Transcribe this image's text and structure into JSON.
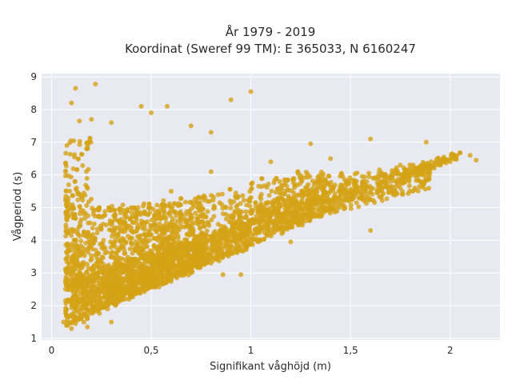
{
  "chart_data": {
    "type": "scatter",
    "title_line1": "År 1979 - 2019",
    "title_line2": "Koordinat (Sweref 99 TM): E 365033, N 6160247",
    "xlabel": "Signifikant våghöjd (m)",
    "ylabel": "Vågperiod (s)",
    "xlim": [
      -0.05,
      2.25
    ],
    "ylim": [
      0.95,
      9.1
    ],
    "x_ticks": [
      0,
      0.5,
      1,
      1.5,
      2
    ],
    "x_tick_labels": [
      "0",
      "0,5",
      "1",
      "1,5",
      "2"
    ],
    "y_ticks": [
      1,
      2,
      3,
      4,
      5,
      6,
      7,
      8,
      9
    ],
    "y_tick_labels": [
      "1",
      "2",
      "3",
      "4",
      "5",
      "6",
      "7",
      "8",
      "9"
    ],
    "grid": true,
    "background": "#e9e9f1",
    "marker_color": "#d4a317",
    "sample_points": [
      [
        0.06,
        1.5
      ],
      [
        0.08,
        1.4
      ],
      [
        0.1,
        1.3
      ],
      [
        0.12,
        1.45
      ],
      [
        0.15,
        1.6
      ],
      [
        0.2,
        1.8
      ],
      [
        0.3,
        2.1
      ],
      [
        0.4,
        2.35
      ],
      [
        0.5,
        2.6
      ],
      [
        0.6,
        2.8
      ],
      [
        0.7,
        3.0
      ],
      [
        0.8,
        3.3
      ],
      [
        0.9,
        3.6
      ],
      [
        1.0,
        3.9
      ],
      [
        1.1,
        4.2
      ],
      [
        1.2,
        4.5
      ],
      [
        1.3,
        4.8
      ],
      [
        1.4,
        5.0
      ],
      [
        1.5,
        5.3
      ],
      [
        1.6,
        5.6
      ],
      [
        1.7,
        5.8
      ],
      [
        1.8,
        6.0
      ],
      [
        1.9,
        6.2
      ],
      [
        2.0,
        6.4
      ],
      [
        2.1,
        6.6
      ],
      [
        2.13,
        6.45
      ],
      [
        1.88,
        7.0
      ],
      [
        1.6,
        7.1
      ],
      [
        1.3,
        6.95
      ],
      [
        1.0,
        8.55
      ],
      [
        0.9,
        8.3
      ],
      [
        0.22,
        8.78
      ],
      [
        0.12,
        8.65
      ],
      [
        0.1,
        8.2
      ],
      [
        0.45,
        8.1
      ],
      [
        0.58,
        8.1
      ],
      [
        0.5,
        7.9
      ],
      [
        0.7,
        7.5
      ],
      [
        0.8,
        7.3
      ],
      [
        0.3,
        7.6
      ],
      [
        0.2,
        7.7
      ],
      [
        0.14,
        7.65
      ],
      [
        1.6,
        4.3
      ],
      [
        0.95,
        2.95
      ],
      [
        0.86,
        2.95
      ],
      [
        1.2,
        3.95
      ],
      [
        0.3,
        1.5
      ],
      [
        0.18,
        1.35
      ],
      [
        0.4,
        5.0
      ],
      [
        0.6,
        5.5
      ],
      [
        0.8,
        6.1
      ],
      [
        1.1,
        6.4
      ],
      [
        1.4,
        6.5
      ],
      [
        1.75,
        6.3
      ]
    ]
  }
}
